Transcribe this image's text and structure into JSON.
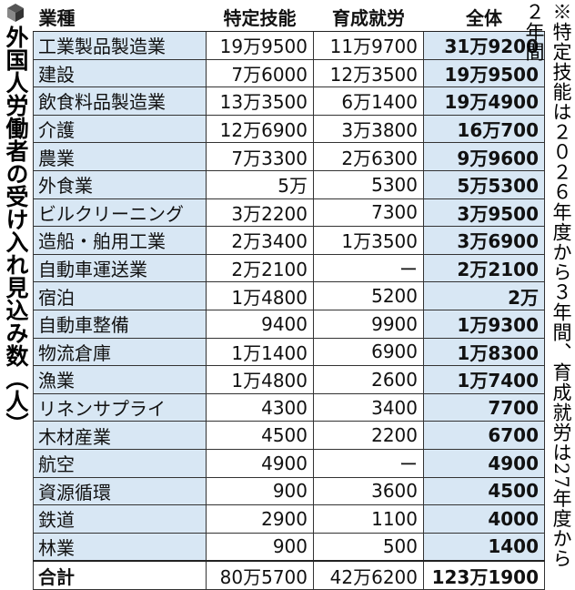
{
  "title": "外国人労働者の受け入れ見込み数（人）",
  "note": "※特定技能は２０２６年度から３年間、育成就労は27年度から２年間",
  "table": {
    "headers": [
      "業種",
      "特定技能",
      "育成就労",
      "全体"
    ],
    "rows": [
      {
        "industry": "工業製品製造業",
        "tokutei": "19万9500",
        "ikusei": "11万9700",
        "total": "31万9200"
      },
      {
        "industry": "建設",
        "tokutei": "7万6000",
        "ikusei": "12万3500",
        "total": "19万9500"
      },
      {
        "industry": "飲食料品製造業",
        "tokutei": "13万3500",
        "ikusei": "6万1400",
        "total": "19万4900"
      },
      {
        "industry": "介護",
        "tokutei": "12万6900",
        "ikusei": "3万3800",
        "total": "16万700"
      },
      {
        "industry": "農業",
        "tokutei": "7万3300",
        "ikusei": "2万6300",
        "total": "9万9600"
      },
      {
        "industry": "外食業",
        "tokutei": "5万",
        "ikusei": "5300",
        "total": "5万5300"
      },
      {
        "industry": "ビルクリーニング",
        "tokutei": "3万2200",
        "ikusei": "7300",
        "total": "3万9500"
      },
      {
        "industry": "造船・舶用工業",
        "tokutei": "2万3400",
        "ikusei": "1万3500",
        "total": "3万6900"
      },
      {
        "industry": "自動車運送業",
        "tokutei": "2万2100",
        "ikusei": "ー",
        "total": "2万2100"
      },
      {
        "industry": "宿泊",
        "tokutei": "1万4800",
        "ikusei": "5200",
        "total": "2万"
      },
      {
        "industry": "自動車整備",
        "tokutei": "9400",
        "ikusei": "9900",
        "total": "1万9300"
      },
      {
        "industry": "物流倉庫",
        "tokutei": "1万1400",
        "ikusei": "6900",
        "total": "1万8300"
      },
      {
        "industry": "漁業",
        "tokutei": "1万4800",
        "ikusei": "2600",
        "total": "1万7400"
      },
      {
        "industry": "リネンサプライ",
        "tokutei": "4300",
        "ikusei": "3400",
        "total": "7700"
      },
      {
        "industry": "木材産業",
        "tokutei": "4500",
        "ikusei": "2200",
        "total": "6700"
      },
      {
        "industry": "航空",
        "tokutei": "4900",
        "ikusei": "ー",
        "total": "4900"
      },
      {
        "industry": "資源循環",
        "tokutei": "900",
        "ikusei": "3600",
        "total": "4500"
      },
      {
        "industry": "鉄道",
        "tokutei": "2900",
        "ikusei": "1100",
        "total": "4000"
      },
      {
        "industry": "林業",
        "tokutei": "900",
        "ikusei": "500",
        "total": "1400"
      }
    ],
    "sum": {
      "industry": "合計",
      "tokutei": "80万5700",
      "ikusei": "42万6200",
      "total": "123万1900"
    }
  },
  "colors": {
    "industry_bg": "#d8e7f4",
    "total_bg": "#d8e7f4",
    "border": "#333333"
  }
}
